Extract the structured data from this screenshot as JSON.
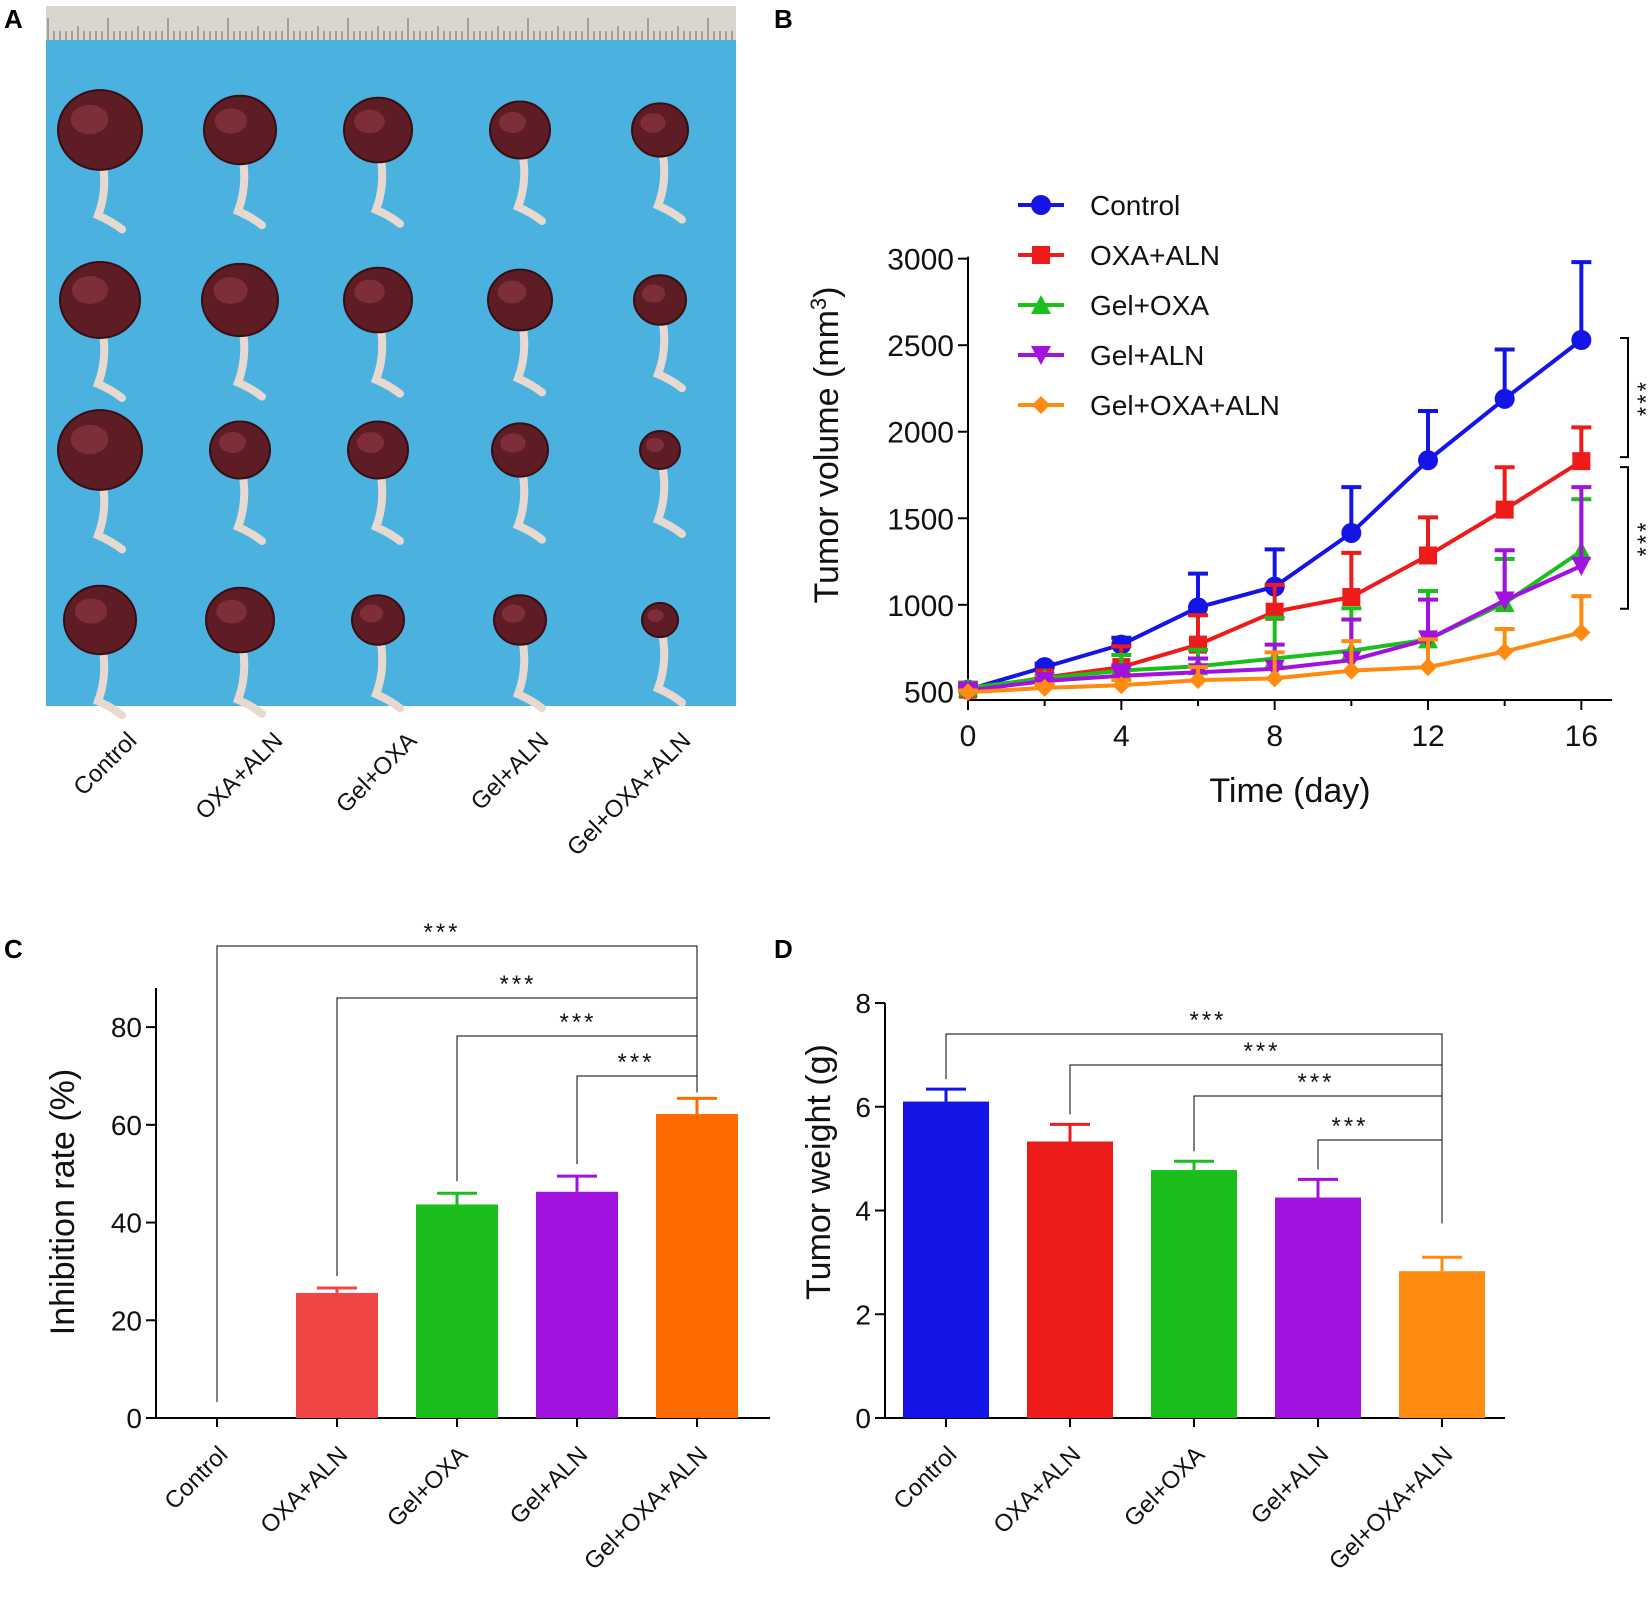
{
  "panels": {
    "a": "A",
    "b": "B",
    "c": "C",
    "d": "D"
  },
  "photo": {
    "description_labels": [
      "Control",
      "OXA+ALN",
      "Gel+OXA",
      "Gel+ALN",
      "Gel+OXA+ALN"
    ],
    "background_color": "#4bb2df"
  },
  "colors": {
    "Control": "#1414e6",
    "OXA+ALN": "#ee1b1b",
    "Gel+OXA": "#1bbf1b",
    "Gel+ALN": "#a211dd",
    "Gel+OXA+ALN": "#ff8a10",
    "C_OXA+ALN": "#f24545",
    "C_Gel+OXA+ALN": "#ff6a00"
  },
  "significance": "***",
  "chart_data": [
    {
      "id": "B",
      "type": "line",
      "title": "",
      "xlabel": "Time (day)",
      "ylabel": "Tumor volume (mm",
      "ylabel_sup": "3",
      "ylabel_close": ")",
      "xlim": [
        0,
        16.8
      ],
      "ylim": [
        450,
        3050
      ],
      "xticks": [
        0,
        4,
        8,
        12,
        16
      ],
      "yticks": [
        500,
        1000,
        1500,
        2000,
        2500,
        3000
      ],
      "legend_position": "top-left",
      "x": [
        0,
        2,
        4,
        6,
        8,
        10,
        12,
        14,
        16
      ],
      "series": [
        {
          "name": "Control",
          "marker": "circle",
          "values": [
            510,
            640,
            770,
            985,
            1105,
            1415,
            1835,
            2190,
            2530
          ],
          "err": [
            0,
            20,
            40,
            195,
            215,
            265,
            285,
            285,
            450
          ]
        },
        {
          "name": "OXA+ALN",
          "marker": "square",
          "values": [
            510,
            580,
            640,
            770,
            960,
            1045,
            1285,
            1550,
            1830
          ],
          "err": [
            0,
            10,
            120,
            170,
            155,
            255,
            220,
            245,
            195
          ]
        },
        {
          "name": "Gel+OXA",
          "marker": "triangle-up",
          "values": [
            520,
            575,
            620,
            645,
            690,
            735,
            800,
            1010,
            1310
          ],
          "err": [
            30,
            10,
            90,
            95,
            235,
            245,
            280,
            255,
            300
          ]
        },
        {
          "name": "Gel+ALN",
          "marker": "triangle-down",
          "values": [
            505,
            560,
            590,
            610,
            630,
            680,
            800,
            1025,
            1225
          ],
          "err": [
            30,
            10,
            60,
            80,
            140,
            235,
            230,
            290,
            455
          ]
        },
        {
          "name": "Gel+OXA+ALN",
          "marker": "diamond",
          "values": [
            495,
            520,
            535,
            565,
            575,
            620,
            640,
            730,
            840
          ],
          "err": [
            10,
            20,
            30,
            75,
            150,
            170,
            160,
            130,
            210
          ]
        }
      ],
      "brackets": [
        {
          "label": "***",
          "y_top": 2530,
          "y_bottom": 1830
        },
        {
          "label": "***",
          "y_top": 1830,
          "y_bottom": 1000
        }
      ]
    },
    {
      "id": "C",
      "type": "bar",
      "title": "",
      "xlabel": "",
      "ylabel": "Inhibition rate (%)",
      "ylim": [
        0,
        88
      ],
      "yticks": [
        0,
        20,
        40,
        60,
        80
      ],
      "categories": [
        "Control",
        "OXA+ALN",
        "Gel+OXA",
        "Gel+ALN",
        "Gel+OXA+ALN"
      ],
      "values": [
        0,
        25.6,
        43.7,
        46.3,
        62.2
      ],
      "err": [
        0,
        1.0,
        2.3,
        3.2,
        3.2
      ],
      "comparisons": [
        {
          "from": "Control",
          "to": "Gel+OXA+ALN",
          "label": "***"
        },
        {
          "from": "OXA+ALN",
          "to": "Gel+OXA+ALN",
          "label": "***"
        },
        {
          "from": "Gel+OXA",
          "to": "Gel+OXA+ALN",
          "label": "***"
        },
        {
          "from": "Gel+ALN",
          "to": "Gel+OXA+ALN",
          "label": "***"
        }
      ]
    },
    {
      "id": "D",
      "type": "bar",
      "title": "",
      "xlabel": "",
      "ylabel": "Tumor weight (g)",
      "ylim": [
        0,
        8
      ],
      "yticks": [
        0,
        2,
        4,
        6,
        8
      ],
      "categories": [
        "Control",
        "OXA+ALN",
        "Gel+OXA",
        "Gel+ALN",
        "Gel+OXA+ALN"
      ],
      "values": [
        6.1,
        5.33,
        4.78,
        4.25,
        2.83
      ],
      "err": [
        0.24,
        0.33,
        0.17,
        0.35,
        0.27
      ],
      "comparisons": [
        {
          "from": "Control",
          "to": "Gel+OXA+ALN",
          "label": "***"
        },
        {
          "from": "OXA+ALN",
          "to": "Gel+OXA+ALN",
          "label": "***"
        },
        {
          "from": "Gel+OXA",
          "to": "Gel+OXA+ALN",
          "label": "***"
        },
        {
          "from": "Gel+ALN",
          "to": "Gel+OXA+ALN",
          "label": "***"
        }
      ]
    }
  ]
}
